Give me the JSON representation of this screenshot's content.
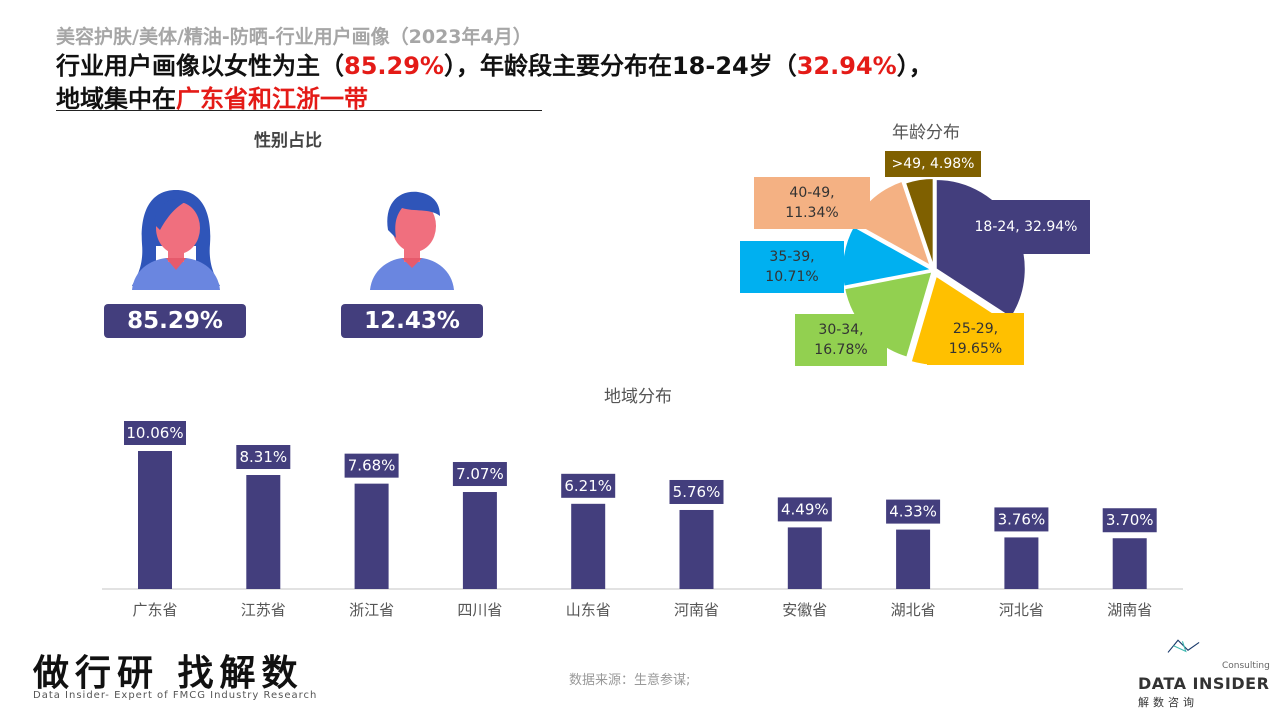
{
  "header": {
    "subtitle": "美容护肤/美体/精油-防晒-行业用户画像（2023年4月）",
    "line1_a": "行业用户画像以女性为主（",
    "line1_b": "85.29%",
    "line1_c": "），年龄段主要分布在18-24岁（",
    "line1_d": "32.94%",
    "line1_e": "），",
    "line2_a": "地域集中在",
    "line2_b": "广东省和江浙一带"
  },
  "gender": {
    "title": "性别占比",
    "female_value": "85.29%",
    "male_value": "12.43%",
    "female_share": 85.29,
    "male_share": 12.43
  },
  "footer": {
    "slogan": "做行研 找解数",
    "sub": "Data Insider- Expert of FMCG Industry Research",
    "source": "数据来源：生意参谋;",
    "logo_consulting": "Consulting",
    "logo_name": "DATA INSIDER",
    "logo_cn": "解数咨询"
  },
  "colors": {
    "accent": "#433e7d",
    "highlight": "#e41b17",
    "hair": "#2f55b9",
    "skin": "#f06f7e",
    "shirt": "#6a86e0"
  },
  "chart_data": [
    {
      "type": "pie",
      "title": "年龄分布",
      "series": [
        {
          "label": "18-24",
          "value": 32.94,
          "text": "18-24, 32.94%",
          "color": "#433e7d"
        },
        {
          "label": "25-29",
          "value": 19.65,
          "text": "25-29, 19.65%",
          "color": "#ffc000"
        },
        {
          "label": "30-34",
          "value": 16.78,
          "text": "30-34, 16.78%",
          "color": "#92d050"
        },
        {
          "label": "35-39",
          "value": 10.71,
          "text": "35-39, 10.71%",
          "color": "#00b0f0"
        },
        {
          "label": "40-49",
          "value": 11.34,
          "text": "40-49, 11.34%",
          "color": "#f4b183"
        },
        {
          "label": ">49",
          "value": 4.98,
          "text": ">49, 4.98%",
          "color": "#7f6000"
        }
      ]
    },
    {
      "type": "bar",
      "title": "地域分布",
      "categories": [
        "广东省",
        "江苏省",
        "浙江省",
        "四川省",
        "山东省",
        "河南省",
        "安徽省",
        "湖北省",
        "河北省",
        "湖南省"
      ],
      "values": [
        10.06,
        8.31,
        7.68,
        7.07,
        6.21,
        5.76,
        4.49,
        4.33,
        3.76,
        3.7
      ],
      "labels": [
        "10.06%",
        "8.31%",
        "7.68%",
        "7.07%",
        "6.21%",
        "5.76%",
        "4.49%",
        "4.33%",
        "3.76%",
        "3.70%"
      ],
      "color": "#433e7d",
      "ylim": [
        0,
        11
      ]
    }
  ]
}
